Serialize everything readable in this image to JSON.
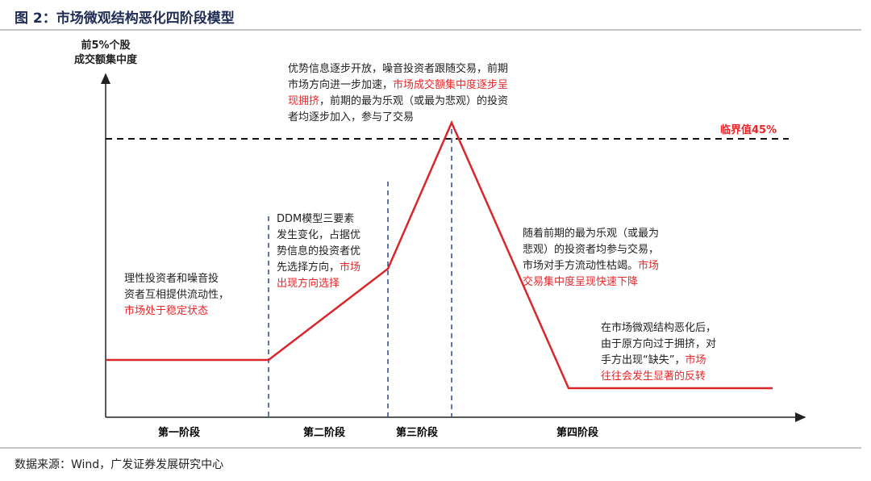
{
  "title": "图 2：市场微观结构恶化四阶段模型",
  "y_axis_label": [
    "前5%个股",
    "成交额集中度"
  ],
  "threshold_label": "临界值45%",
  "annotations": [
    {
      "lines": [
        [
          {
            "text": "优势信息逐步开放，噪音投资者跟随交易，前期"
          }
        ],
        [
          {
            "text": "市场方向进一步加速，"
          },
          {
            "text": "市场成交额集中度逐步呈",
            "color": "#e8262a"
          }
        ],
        [
          {
            "text": "现拥挤",
            "color": "#e8262a"
          },
          {
            "text": "，前期的最为乐观（或最为悲观）的投资"
          }
        ],
        [
          {
            "text": "者均逐步加入，参与了交易"
          }
        ]
      ]
    },
    {
      "lines": [
        [
          {
            "text": "DDM模型三要素"
          }
        ],
        [
          {
            "text": "发生变化，占据优"
          }
        ],
        [
          {
            "text": "势信息的投资者优"
          }
        ],
        [
          {
            "text": "先选择方向，"
          },
          {
            "text": "市场",
            "color": "#e8262a"
          }
        ],
        [
          {
            "text": "出现方向选择",
            "color": "#e8262a"
          }
        ]
      ]
    },
    {
      "lines": [
        [
          {
            "text": "理性投资者和噪音投"
          }
        ],
        [
          {
            "text": "资者互相提供流动性，"
          }
        ],
        [
          {
            "text": "市场处于稳定状态",
            "color": "#e8262a"
          }
        ]
      ]
    },
    {
      "lines": [
        [
          {
            "text": "随着前期的最为乐观（或最为"
          }
        ],
        [
          {
            "text": "悲观）的投资者均参与交易，"
          }
        ],
        [
          {
            "text": "市场对手方流动性枯竭。"
          },
          {
            "text": "市场",
            "color": "#e8262a"
          }
        ],
        [
          {
            "text": "交易集中度呈现快速下降",
            "color": "#e8262a"
          }
        ]
      ]
    },
    {
      "lines": [
        [
          {
            "text": "在市场微观结构恶化后，"
          }
        ],
        [
          {
            "text": "由于原方向过于拥挤，对"
          }
        ],
        [
          {
            "text": "手方出现“缺失”，"
          },
          {
            "text": "市场",
            "color": "#e8262a"
          }
        ],
        [
          {
            "text": "往往会发生显著的反转",
            "color": "#e8262a"
          }
        ]
      ]
    }
  ],
  "phases": [
    "第一阶段",
    "第二阶段",
    "第三阶段",
    "第四阶段"
  ],
  "source": "数据来源：Wind，广发证券发展研究中心"
}
